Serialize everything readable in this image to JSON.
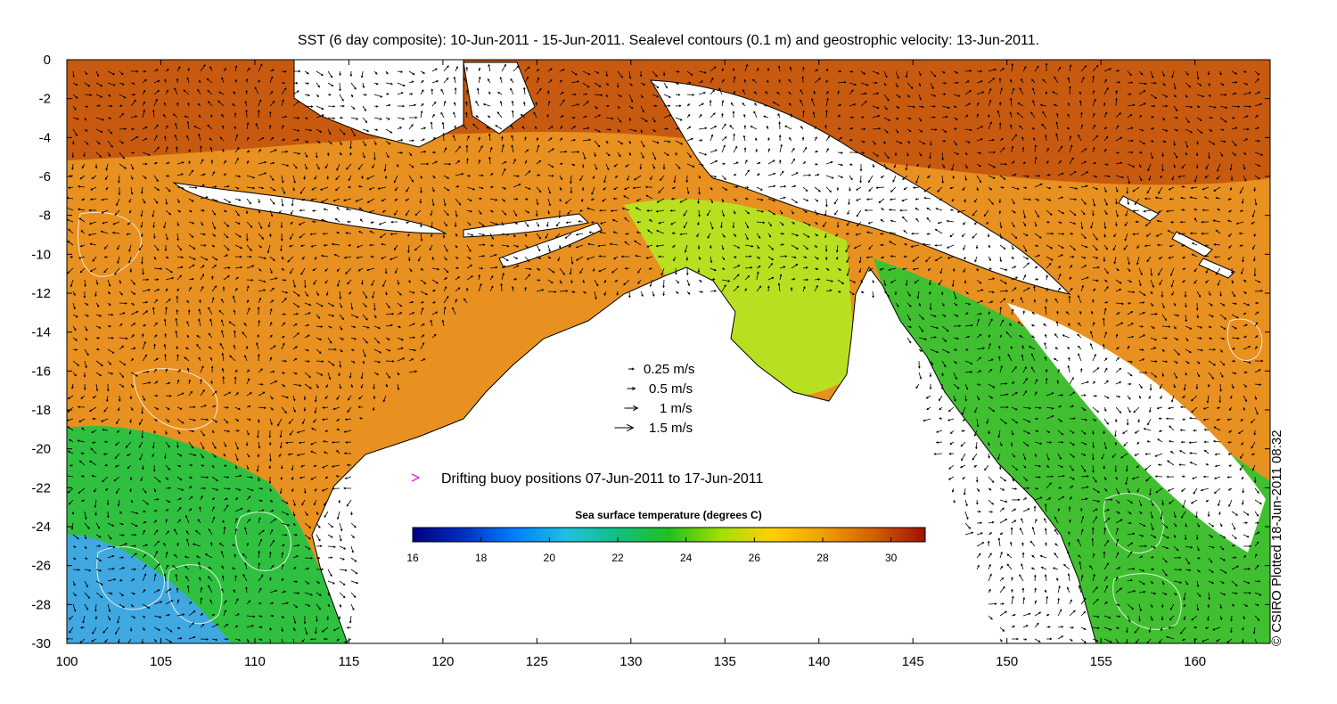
{
  "title": "SST (6 day composite): 10-Jun-2011 - 15-Jun-2011. Sealevel contours (0.1 m) and geostrophic velocity: 13-Jun-2011.",
  "x_axis": {
    "range": [
      100,
      164
    ],
    "ticks": [
      "100",
      "105",
      "110",
      "115",
      "120",
      "125",
      "130",
      "135",
      "140",
      "145",
      "150",
      "155",
      "160"
    ]
  },
  "y_axis": {
    "range": [
      -30,
      0
    ],
    "ticks": [
      "0",
      "-2",
      "-4",
      "-6",
      "-8",
      "-10",
      "-12",
      "-14",
      "-16",
      "-18",
      "-20",
      "-22",
      "-24",
      "-26",
      "-28",
      "-30"
    ]
  },
  "velocity_legend": [
    {
      "label": "0.25 m/s",
      "speed": 0.25
    },
    {
      "label": "0.5 m/s",
      "speed": 0.5
    },
    {
      "label": "1 m/s",
      "speed": 1
    },
    {
      "label": "1.5 m/s",
      "speed": 1.5
    }
  ],
  "buoy_legend": {
    "label": "Drifting buoy positions 07-Jun-2011 to 17-Jun-2011",
    "color": "#d400d4"
  },
  "colorbar": {
    "title": "Sea surface temperature (degrees C)",
    "min": 16,
    "max": 31,
    "ticks": [
      "16",
      "18",
      "20",
      "22",
      "24",
      "26",
      "28",
      "30"
    ],
    "colors": [
      "#000080",
      "#0030c0",
      "#0080ff",
      "#20c0e0",
      "#10c080",
      "#20c020",
      "#a0e000",
      "#ffd000",
      "#f0a000",
      "#d06000",
      "#a01000"
    ]
  },
  "credit": "© CSIRO Plotted 18-Jun-2011 08:32",
  "colors": {
    "land": "#ffffff",
    "contour": "#ffffff",
    "arrow": "#000000",
    "frame": "#000000"
  }
}
